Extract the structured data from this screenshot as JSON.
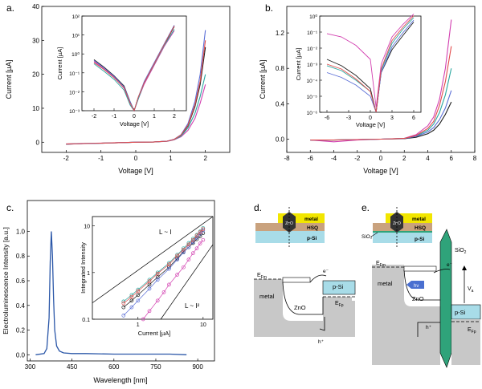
{
  "panel_labels": {
    "a": "a.",
    "b": "b.",
    "c": "c.",
    "d": "d.",
    "e": "e."
  },
  "colors": {
    "series": [
      "#1c1c1c",
      "#d23fb0",
      "#2aa7a0",
      "#5b6fd6",
      "#e24b4b"
    ],
    "el_curve": "#2b57a8",
    "metal_layer": "#f2e600",
    "hsq_layer": "#c9a27e",
    "psi_layer": "#a8dce8",
    "band_fill": "#c8c8c8",
    "oxide": "#2fa37a"
  },
  "chart_data": [
    {
      "id": "a",
      "type": "line",
      "xlabel": "Voltage [V]",
      "ylabel": "Current [µA]",
      "xlim": [
        -2.7,
        2.7
      ],
      "ylim": [
        -3,
        40
      ],
      "xticks": [
        -2,
        -1,
        0,
        1,
        2
      ],
      "yticks": [
        0,
        10,
        20,
        30,
        40
      ],
      "series": [
        {
          "x": [
            -2,
            -1.5,
            -1,
            -0.5,
            0,
            0.5,
            0.9,
            1.1,
            1.3,
            1.5,
            1.7,
            1.85,
            2.0
          ],
          "y": [
            -0.6,
            -0.4,
            -0.3,
            -0.15,
            0,
            0.05,
            0.3,
            0.8,
            2.0,
            4.8,
            10.5,
            17,
            28
          ]
        },
        {
          "x": [
            -2,
            -1.5,
            -1,
            -0.5,
            0,
            0.5,
            0.9,
            1.1,
            1.3,
            1.5,
            1.7,
            1.85,
            2.0
          ],
          "y": [
            -0.5,
            -0.35,
            -0.25,
            -0.12,
            0,
            0.05,
            0.25,
            0.7,
            1.6,
            3.5,
            7.0,
            11.5,
            17
          ]
        },
        {
          "x": [
            -2,
            -1.5,
            -1,
            -0.5,
            0,
            0.5,
            0.9,
            1.1,
            1.3,
            1.5,
            1.7,
            1.85,
            2.0
          ],
          "y": [
            -0.55,
            -0.38,
            -0.28,
            -0.14,
            0,
            0.05,
            0.28,
            0.75,
            1.8,
            4.2,
            8.5,
            13.5,
            20
          ]
        },
        {
          "x": [
            -2,
            -1.5,
            -1,
            -0.5,
            0,
            0.5,
            0.9,
            1.1,
            1.3,
            1.5,
            1.7,
            1.85,
            2.0
          ],
          "y": [
            -0.6,
            -0.42,
            -0.3,
            -0.15,
            0,
            0.06,
            0.32,
            0.85,
            2.2,
            5.5,
            12,
            20,
            33
          ]
        },
        {
          "x": [
            -2,
            -1.5,
            -1,
            -0.5,
            0,
            0.5,
            0.9,
            1.1,
            1.3,
            1.5,
            1.7,
            1.85,
            2.0
          ],
          "y": [
            -0.55,
            -0.4,
            -0.28,
            -0.14,
            0,
            0.05,
            0.3,
            0.8,
            2.1,
            5.0,
            11,
            18,
            30
          ]
        }
      ],
      "inset": {
        "xlabel": "Voltage [V]",
        "ylabel": "Current [µA]",
        "xlim": [
          -2.6,
          2.6
        ],
        "ylim_log": [
          -3,
          2
        ],
        "yscale": "log",
        "xticks": [
          -2,
          -1,
          0,
          1,
          2
        ],
        "yticks_labels": [
          "10²",
          "10¹",
          "10⁰",
          "10⁻¹",
          "10⁻²",
          "10⁻³"
        ],
        "series": [
          {
            "x": [
              -2,
              -1.5,
              -1,
              -0.5,
              -0.2,
              0,
              0.2,
              0.5,
              1,
              1.5,
              2
            ],
            "y": [
              0.5,
              0.2,
              0.07,
              0.02,
              0.003,
              0.001,
              0.005,
              0.03,
              0.3,
              3,
              28
            ]
          },
          {
            "x": [
              -2,
              -1.5,
              -1,
              -0.5,
              -0.2,
              0,
              0.2,
              0.5,
              1,
              1.5,
              2
            ],
            "y": [
              0.4,
              0.16,
              0.06,
              0.015,
              0.002,
              0.001,
              0.004,
              0.025,
              0.25,
              2.5,
              17
            ]
          },
          {
            "x": [
              -2,
              -1.5,
              -1,
              -0.5,
              -0.2,
              0,
              0.2,
              0.5,
              1,
              1.5,
              2
            ],
            "y": [
              0.3,
              0.12,
              0.045,
              0.012,
              0.002,
              0.001,
              0.004,
              0.03,
              0.28,
              2.8,
              20
            ]
          },
          {
            "x": [
              -2,
              -1.5,
              -1,
              -0.5,
              -0.2,
              0,
              0.2,
              0.5,
              1,
              1.5,
              2
            ],
            "y": [
              0.45,
              0.18,
              0.065,
              0.018,
              0.003,
              0.001,
              0.005,
              0.035,
              0.35,
              3.5,
              33
            ]
          },
          {
            "x": [
              -2,
              -1.5,
              -1,
              -0.5,
              -0.2,
              0,
              0.2,
              0.5,
              1,
              1.5,
              2
            ],
            "y": [
              0.35,
              0.15,
              0.055,
              0.016,
              0.0025,
              0.001,
              0.005,
              0.03,
              0.3,
              3.2,
              30
            ]
          }
        ]
      }
    },
    {
      "id": "b",
      "type": "line",
      "xlabel": "Voltage [V]",
      "ylabel": "Current [µA]",
      "xlim": [
        -8,
        8
      ],
      "ylim": [
        -0.15,
        1.5
      ],
      "xticks": [
        -8,
        -6,
        -4,
        -2,
        0,
        2,
        4,
        6,
        8
      ],
      "yticks": [
        0.0,
        0.4,
        0.8,
        1.2
      ],
      "series": [
        {
          "x": [
            -6,
            -4,
            -2,
            0,
            2,
            3,
            4,
            4.5,
            5,
            5.5,
            6
          ],
          "y": [
            -0.01,
            -0.01,
            -0.005,
            0,
            0.005,
            0.02,
            0.06,
            0.1,
            0.17,
            0.28,
            0.42
          ]
        },
        {
          "x": [
            -6,
            -4,
            -2,
            0,
            2,
            3,
            4,
            4.5,
            5,
            5.5,
            6
          ],
          "y": [
            -0.01,
            -0.03,
            -0.01,
            0,
            0.01,
            0.05,
            0.15,
            0.25,
            0.45,
            0.8,
            1.35
          ]
        },
        {
          "x": [
            -6,
            -4,
            -2,
            0,
            2,
            3,
            4,
            4.5,
            5,
            5.5,
            6
          ],
          "y": [
            -0.01,
            -0.01,
            -0.005,
            0,
            0.008,
            0.035,
            0.1,
            0.17,
            0.3,
            0.5,
            0.8
          ]
        },
        {
          "x": [
            -6,
            -4,
            -2,
            0,
            2,
            3,
            4,
            4.5,
            5,
            5.5,
            6
          ],
          "y": [
            -0.01,
            -0.01,
            -0.005,
            0,
            0.007,
            0.03,
            0.08,
            0.13,
            0.22,
            0.35,
            0.55
          ]
        },
        {
          "x": [
            -6,
            -4,
            -2,
            0,
            2,
            3,
            4,
            4.5,
            5,
            5.5,
            6
          ],
          "y": [
            -0.01,
            -0.01,
            -0.005,
            0,
            0.008,
            0.04,
            0.12,
            0.2,
            0.38,
            0.65,
            1.05
          ]
        }
      ],
      "inset": {
        "xlabel": "Voltage [V]",
        "ylabel": "Current [µA]",
        "xlim": [
          -7,
          7
        ],
        "ylim_log": [
          -6,
          1
        ],
        "yscale": "log",
        "xticks": [
          -6,
          -3,
          0,
          3,
          6
        ],
        "yticks_labels": [
          "10⁰",
          "10⁻¹",
          "10⁻²",
          "10⁻³",
          "10⁻⁴",
          "10⁻⁵",
          "10⁻⁶"
        ],
        "series": [
          {
            "x": [
              -6,
              -4,
              -2,
              0,
              0.8,
              1.5,
              3,
              4.5,
              6
            ],
            "y": [
              0.002,
              0.0008,
              0.0002,
              3e-05,
              1e-06,
              0.0003,
              0.008,
              0.06,
              0.42
            ]
          },
          {
            "x": [
              -6,
              -4,
              -2,
              0,
              0.8,
              1.5,
              3,
              4.5,
              6
            ],
            "y": [
              0.08,
              0.05,
              0.015,
              0.002,
              2e-06,
              0.001,
              0.05,
              0.3,
              1.35
            ]
          },
          {
            "x": [
              -6,
              -4,
              -2,
              0,
              0.8,
              1.5,
              3,
              4.5,
              6
            ],
            "y": [
              0.0008,
              0.0004,
              0.0001,
              2e-05,
              1e-06,
              0.0004,
              0.02,
              0.15,
              0.8
            ]
          },
          {
            "x": [
              -6,
              -4,
              -2,
              0,
              0.8,
              1.5,
              3,
              4.5,
              6
            ],
            "y": [
              0.0003,
              0.00015,
              5e-05,
              1e-05,
              1e-06,
              0.0003,
              0.012,
              0.09,
              0.55
            ]
          },
          {
            "x": [
              -6,
              -4,
              -2,
              0,
              0.8,
              1.5,
              3,
              4.5,
              6
            ],
            "y": [
              0.001,
              0.0005,
              0.00012,
              2e-05,
              1e-06,
              0.0005,
              0.03,
              0.2,
              1.05
            ]
          }
        ]
      }
    },
    {
      "id": "c",
      "type": "line",
      "xlabel": "Wavelength [nm]",
      "ylabel": "Electroluminescence Intensity [a.u.]",
      "xlim": [
        290,
        960
      ],
      "ylim": [
        -0.05,
        1.25
      ],
      "xticks": [
        300,
        450,
        600,
        750,
        900
      ],
      "yticks": [
        0.0,
        0.2,
        0.4,
        0.6,
        0.8,
        1.0
      ],
      "series": [
        {
          "x": [
            320,
            350,
            360,
            368,
            372,
            376,
            380,
            384,
            388,
            395,
            405,
            420,
            450,
            500,
            600,
            700,
            800,
            860
          ],
          "y": [
            0.0,
            0.01,
            0.05,
            0.3,
            0.75,
            1.0,
            0.8,
            0.45,
            0.2,
            0.07,
            0.03,
            0.015,
            0.01,
            0.01,
            0.005,
            0.005,
            0.005,
            0.0
          ]
        }
      ],
      "inset": {
        "xlabel": "Current [µA]",
        "ylabel": "Integrated Intensity",
        "xscale": "log",
        "yscale": "log",
        "xlim_log": [
          -0.7,
          1.15
        ],
        "ylim_log": [
          -1,
          1.2
        ],
        "xticks": [
          1,
          10
        ],
        "yticks": [
          0.1,
          1,
          10
        ],
        "annotations": [
          "L ~ I",
          "L ~ I²"
        ],
        "series": [
          {
            "x": [
              0.6,
              0.8,
              1.0,
              1.5,
              2,
              3,
              4,
              5,
              6,
              7,
              8,
              9,
              10
            ],
            "y": [
              0.18,
              0.25,
              0.33,
              0.55,
              0.8,
              1.3,
              2.0,
              2.8,
              3.5,
              4.3,
              5.2,
              6.0,
              7.0
            ]
          },
          {
            "x": [
              1.2,
              1.5,
              2,
              2.5,
              3,
              4,
              5,
              6,
              7,
              8,
              9,
              10
            ],
            "y": [
              0.1,
              0.15,
              0.25,
              0.38,
              0.55,
              0.9,
              1.3,
              1.9,
              2.6,
              3.3,
              4.2,
              5.0
            ]
          },
          {
            "x": [
              0.6,
              0.8,
              1.0,
              1.5,
              2,
              3,
              4,
              5,
              6,
              7,
              8,
              9,
              10
            ],
            "y": [
              0.24,
              0.33,
              0.43,
              0.7,
              1.0,
              1.6,
              2.4,
              3.3,
              4.3,
              5.3,
              6.4,
              7.6,
              9.0
            ]
          },
          {
            "x": [
              0.6,
              0.8,
              1.0,
              1.5,
              2,
              3,
              4,
              5,
              6,
              7,
              8,
              9,
              10
            ],
            "y": [
              0.12,
              0.18,
              0.25,
              0.45,
              0.7,
              1.2,
              1.9,
              2.7,
              3.5,
              4.5,
              5.6,
              6.8,
              8.0
            ]
          },
          {
            "x": [
              0.6,
              0.8,
              1.0,
              1.5,
              2,
              3,
              4,
              5,
              6,
              7,
              8,
              9,
              10
            ],
            "y": [
              0.22,
              0.3,
              0.4,
              0.65,
              0.95,
              1.5,
              2.3,
              3.1,
              4.0,
              5.0,
              6.2,
              7.3,
              8.5
            ]
          }
        ]
      }
    }
  ],
  "diagram_d": {
    "layer_labels": {
      "metal": "metal",
      "hsq": "HSQ",
      "psi": "p-Si",
      "zno": "ZnO"
    },
    "band_labels": {
      "efm": "E",
      "efm_sub": "Fm",
      "metal": "metal",
      "zno": "ZnO",
      "psi": "p-Si",
      "efp": "E",
      "efp_sub": "Fp",
      "electron": "e⁻",
      "hole": "h⁺"
    }
  },
  "diagram_e": {
    "layer_labels": {
      "metal": "metal",
      "hsq": "HSQ",
      "psi": "p-Si",
      "zno": "ZnO",
      "sio2": "SiO₂"
    },
    "band_labels": {
      "efm": "E",
      "efm_sub": "Fm",
      "metal": "metal",
      "zno": "ZnO",
      "psi": "p-Si",
      "sio2": "SiO",
      "sio2_sub": "2",
      "efp": "E",
      "efp_sub": "Fp",
      "electron": "e⁻",
      "hole": "h⁺",
      "hv": "hν",
      "va": "V",
      "va_sub": "a"
    }
  }
}
